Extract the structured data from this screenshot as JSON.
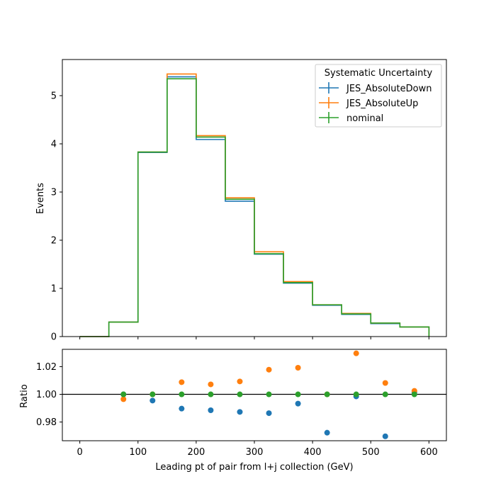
{
  "colors": {
    "JES_AbsoluteDown": "#1f77b4",
    "JES_AbsoluteUp": "#ff7f0e",
    "nominal": "#2ca02c"
  },
  "chart_data": [
    {
      "type": "line",
      "subtype": "step-histogram",
      "xlabel": "",
      "ylabel": "Events",
      "xlim": [
        -30,
        630
      ],
      "ylim": [
        0,
        5.75
      ],
      "yticks": [
        0,
        1,
        2,
        3,
        4,
        5
      ],
      "bin_edges": [
        0,
        50,
        100,
        150,
        200,
        250,
        300,
        350,
        400,
        450,
        500,
        550,
        600
      ],
      "legend": {
        "title": "Systematic Uncertainty",
        "placement": "top-right"
      },
      "series": [
        {
          "name": "JES_AbsoluteDown",
          "values": [
            0.0,
            0.3,
            3.82,
            5.39,
            4.09,
            2.81,
            1.71,
            1.11,
            0.65,
            0.46,
            0.27,
            0.2
          ]
        },
        {
          "name": "JES_AbsoluteUp",
          "values": [
            0.0,
            0.3,
            3.83,
            5.45,
            4.17,
            2.88,
            1.76,
            1.14,
            0.66,
            0.48,
            0.28,
            0.2
          ]
        },
        {
          "name": "nominal",
          "values": [
            0.0,
            0.3,
            3.83,
            5.35,
            4.14,
            2.85,
            1.72,
            1.12,
            0.66,
            0.47,
            0.28,
            0.2
          ]
        }
      ]
    },
    {
      "type": "scatter",
      "xlabel": "Leading pt of pair from l+j collection (GeV)",
      "ylabel": "Ratio",
      "xlim": [
        -30,
        630
      ],
      "ylim": [
        0.9665,
        1.0325
      ],
      "xticks": [
        0,
        100,
        200,
        300,
        400,
        500,
        600
      ],
      "yticks": [
        "0.98",
        "1.00",
        "1.02"
      ],
      "ytick_values": [
        0.98,
        1.0,
        1.02
      ],
      "reference_line": 1.0,
      "x": [
        75,
        125,
        175,
        225,
        275,
        325,
        375,
        425,
        475,
        525,
        575
      ],
      "series": [
        {
          "name": "JES_AbsoluteDown",
          "values": [
            1.0,
            0.9955,
            0.9897,
            0.9885,
            0.9873,
            0.9864,
            0.9933,
            0.9723,
            0.9985,
            0.9697,
            1.0015
          ]
        },
        {
          "name": "JES_AbsoluteUp",
          "values": [
            0.9965,
            1.0,
            1.0088,
            1.0072,
            1.0093,
            1.0178,
            1.0192,
            1.0,
            1.0296,
            1.0082,
            1.0025
          ]
        },
        {
          "name": "nominal",
          "values": [
            1.0,
            1.0,
            1.0,
            1.0,
            1.0,
            1.0,
            1.0,
            1.0,
            1.0,
            1.0,
            1.0
          ]
        }
      ]
    }
  ]
}
